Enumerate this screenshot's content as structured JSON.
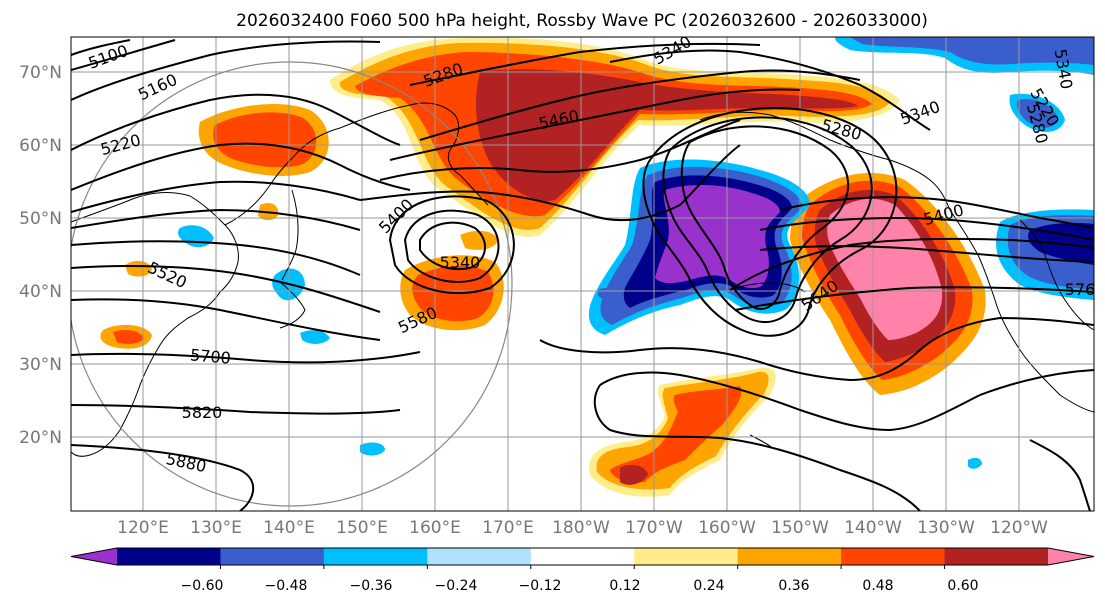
{
  "title": "2026032400 F060 500 hPa height, Rossby Wave PC (2026032600 - 2026033000)",
  "lat_labels": [
    "70°N",
    "60°N",
    "50°N",
    "40°N",
    "30°N",
    "20°N"
  ],
  "lon_labels": [
    "120°E",
    "130°E",
    "140°E",
    "150°E",
    "160°E",
    "170°E",
    "180°W",
    "170°W",
    "160°W",
    "150°W",
    "140°W",
    "130°W",
    "120°W"
  ],
  "contour_labels": [
    "5100",
    "5160",
    "5220",
    "5280",
    "5340",
    "5340",
    "5460",
    "5280",
    "5340",
    "5400",
    "5400",
    "5340",
    "5520",
    "5580",
    "5700",
    "5820",
    "5880",
    "5640",
    "5220",
    "5280",
    "576"
  ],
  "colorbar": {
    "ticks": [
      "−0.60",
      "−0.48",
      "−0.36",
      "−0.24",
      "−0.12",
      "0.12",
      "0.24",
      "0.36",
      "0.48",
      "0.60"
    ],
    "colors": [
      "#9932cc",
      "#00008b",
      "#3a5fcd",
      "#00bfff",
      "#b0e2ff",
      "#ffffff",
      "#ffec8b",
      "#ffa500",
      "#ff4500",
      "#b22222",
      "#ff82ab"
    ]
  }
}
